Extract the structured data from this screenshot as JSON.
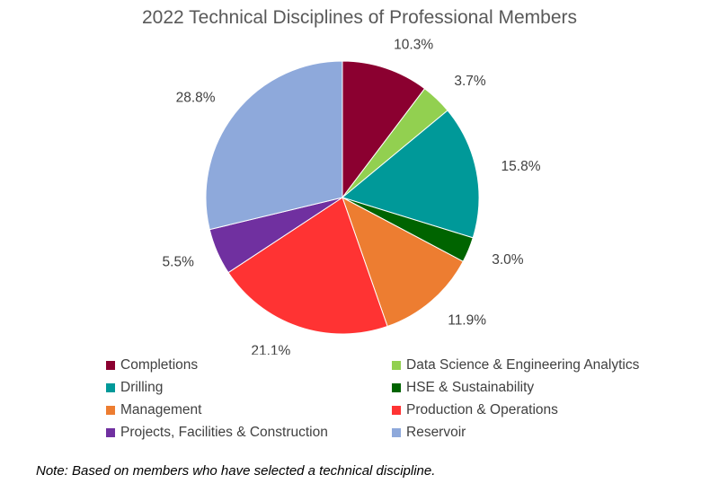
{
  "chart_data": {
    "type": "pie",
    "title": "2022 Technical Disciplines of Professional Members",
    "slices": [
      {
        "label": "Completions",
        "value": 10.3,
        "value_label": "10.3%",
        "color": "#8B0030"
      },
      {
        "label": "Data Science & Engineering Analytics",
        "value": 3.7,
        "value_label": "3.7%",
        "color": "#92D050"
      },
      {
        "label": "Drilling",
        "value": 15.8,
        "value_label": "15.8%",
        "color": "#009999"
      },
      {
        "label": "HSE & Sustainability",
        "value": 3.0,
        "value_label": "3.0%",
        "color": "#006400"
      },
      {
        "label": "Management",
        "value": 11.9,
        "value_label": "11.9%",
        "color": "#ED7D31"
      },
      {
        "label": "Production & Operations",
        "value": 21.1,
        "value_label": "21.1%",
        "color": "#FF3333"
      },
      {
        "label": "Projects, Facilities & Construction",
        "value": 5.5,
        "value_label": "5.5%",
        "color": "#7030A0"
      },
      {
        "label": "Reservoir",
        "value": 28.8,
        "value_label": "28.8%",
        "color": "#8EA9DB"
      }
    ],
    "legend_placement": "bottom"
  },
  "note": "Note: Based on members who have selected a technical discipline."
}
